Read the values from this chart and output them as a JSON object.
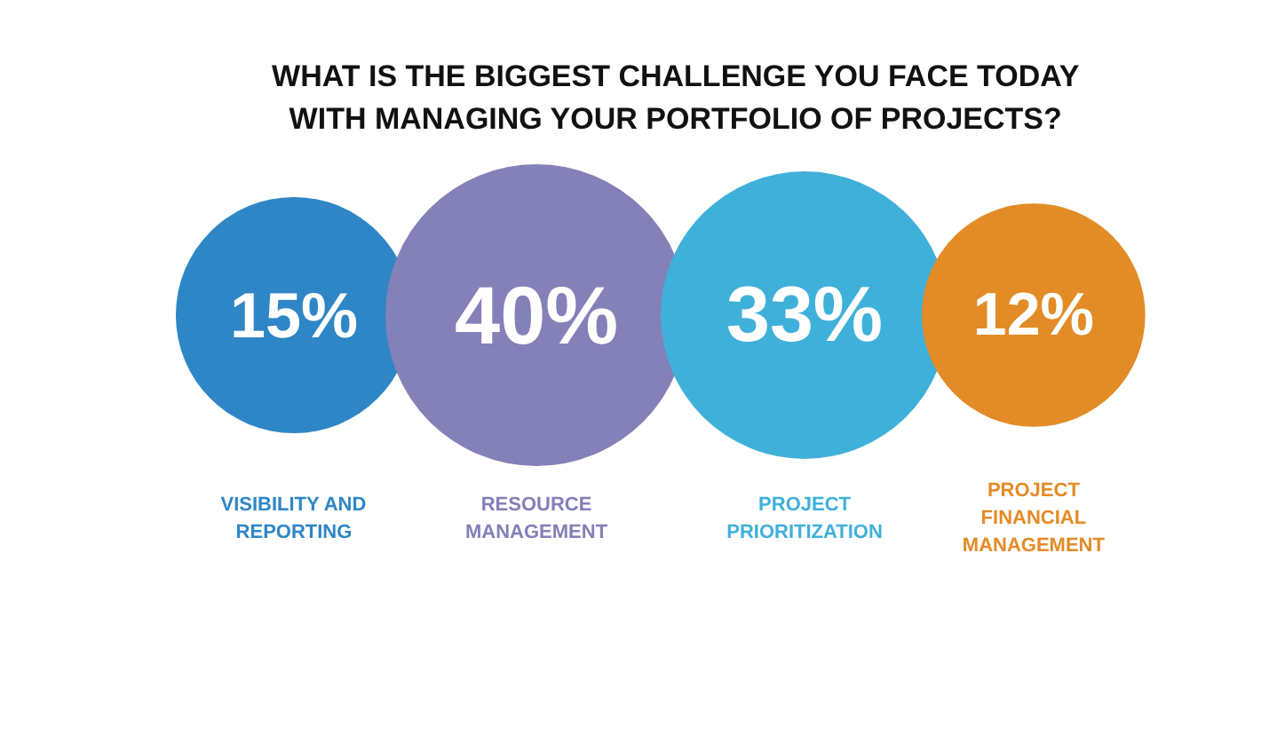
{
  "chart_data": {
    "type": "other",
    "title": "WHAT IS THE BIGGEST CHALLENGE YOU FACE TODAY\nWITH MANAGING YOUR PORTFOLIO OF PROJECTS?",
    "categories": [
      "VISIBILITY AND\nREPORTING",
      "RESOURCE\nMANAGEMENT",
      "PROJECT\nPRIORITIZATION",
      "PROJECT\nFINANCIAL\nMANAGEMENT"
    ],
    "values": [
      15,
      40,
      33,
      12
    ],
    "value_labels": [
      "15%",
      "40%",
      "33%",
      "12%"
    ],
    "colors": [
      "#2e86c6",
      "#8480b8",
      "#3fb0da",
      "#e38b26"
    ]
  }
}
